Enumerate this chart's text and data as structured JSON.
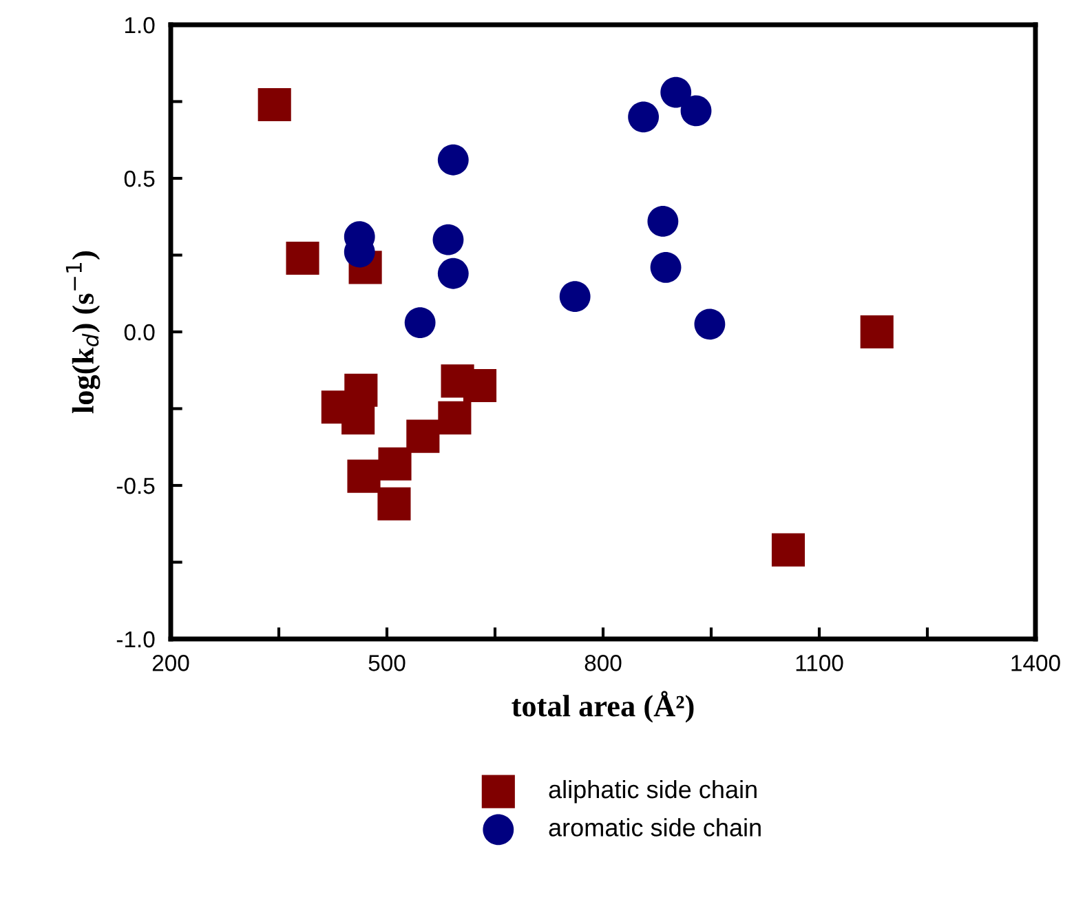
{
  "chart_data": {
    "type": "scatter",
    "xlabel": "total area (Å²)",
    "ylabel": "log(k$_{d}$) (s$^{−1}$)",
    "xlim": [
      200,
      1400
    ],
    "ylim": [
      -1,
      1
    ],
    "xticks": [
      200,
      {
        "value": 350,
        "label": null
      },
      500,
      {
        "value": 650,
        "label": null
      },
      800,
      {
        "value": 950,
        "label": null
      },
      1100,
      {
        "value": 1250,
        "label": null
      },
      1400
    ],
    "yticks": [
      {
        "value": -1,
        "label": "-1.0"
      },
      {
        "value": -0.75,
        "label": null
      },
      {
        "value": -0.5,
        "label": "-0.5"
      },
      {
        "value": -0.25,
        "label": null
      },
      {
        "value": 0,
        "label": "0.0"
      },
      {
        "value": 0.25,
        "label": null
      },
      {
        "value": 0.5,
        "label": "0.5"
      },
      {
        "value": 0.75,
        "label": null
      },
      {
        "value": 1,
        "label": "1.0"
      }
    ],
    "grid": false,
    "legend": "bottom",
    "series": [
      {
        "name": "aliphatic side chain",
        "color": "#800000",
        "marker": "square",
        "x": [
          344,
          383,
          470,
          432,
          464,
          460,
          468,
          511,
          510,
          550,
          594,
          598,
          629,
          1180,
          1057
        ],
        "values": [
          0.74,
          0.24,
          0.21,
          -0.245,
          -0.19,
          -0.28,
          -0.47,
          -0.43,
          -0.56,
          -0.34,
          -0.28,
          -0.16,
          -0.175,
          0.0,
          -0.71
        ]
      },
      {
        "name": "aromatic side chain",
        "color": "#000080",
        "marker": "circle",
        "x": [
          462,
          462,
          592,
          585,
          592,
          546,
          761,
          856,
          901,
          929,
          883,
          887,
          948
        ],
        "values": [
          0.31,
          0.26,
          0.56,
          0.3,
          0.19,
          0.03,
          0.115,
          0.7,
          0.78,
          0.72,
          0.36,
          0.21,
          0.025
        ]
      }
    ]
  }
}
